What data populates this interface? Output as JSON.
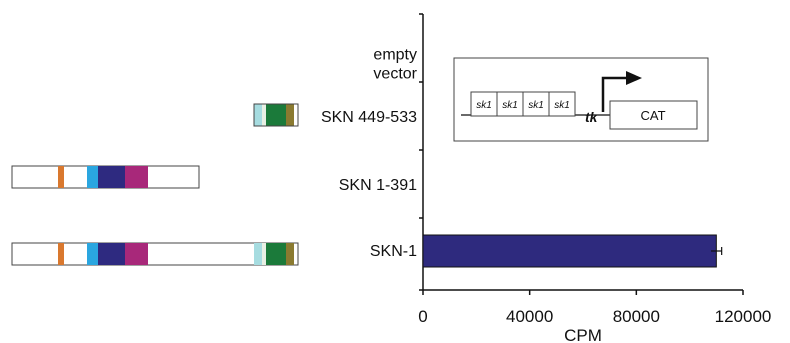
{
  "chart_data": {
    "type": "bar",
    "orientation": "horizontal",
    "categories": [
      "empty vector",
      "SKN 449-533",
      "SKN 1-391",
      "SKN-1"
    ],
    "category_lines": [
      [
        "empty",
        "vector"
      ],
      [
        "SKN 449-533"
      ],
      [
        "SKN 1-391"
      ],
      [
        "SKN-1"
      ]
    ],
    "values": [
      0,
      0,
      0,
      110000
    ],
    "error": [
      0,
      0,
      0,
      2000
    ],
    "xlabel": "CPM",
    "xlim": [
      0,
      120000
    ],
    "xticks": [
      0,
      40000,
      80000,
      120000
    ],
    "grid": false,
    "bar_color": "#2e2a7e"
  },
  "diagram": {
    "sk1_boxes": [
      "sk1",
      "sk1",
      "sk1",
      "sk1"
    ],
    "promoter_label": "tk",
    "reporter_label": "CAT"
  },
  "constructs": {
    "colors": {
      "orange": "#d9782e",
      "cyan": "#2aa6e0",
      "navy": "#2e2a80",
      "magenta": "#a8287a",
      "light_cyan": "#a6dce0",
      "pale": "#e8f0e4",
      "green": "#1b7a3a",
      "olive": "#8a7a30"
    }
  }
}
